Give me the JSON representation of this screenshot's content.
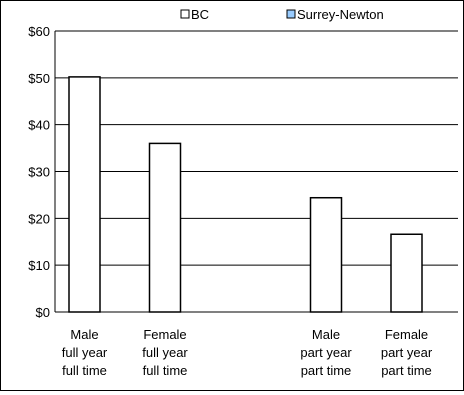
{
  "chart_data": {
    "type": "bar",
    "categories": [
      [
        "Male",
        "full year",
        "full time"
      ],
      [
        "Female",
        "full year",
        "full time"
      ],
      [
        "Male",
        "part year",
        "part time"
      ],
      [
        "Female",
        "part year",
        "part time"
      ]
    ],
    "category_positions": [
      0,
      1,
      3,
      4
    ],
    "series": [
      {
        "name": "BC",
        "values": [
          50.2,
          36.0,
          24.4,
          16.6
        ],
        "color": "#ffffff"
      },
      {
        "name": "Surrey-Newton",
        "values": [
          null,
          null,
          null,
          null
        ],
        "color": "#99ccff"
      }
    ],
    "yticks": [
      "$0",
      "$10",
      "$20",
      "$30",
      "$40",
      "$50",
      "$60"
    ],
    "ylim": [
      0,
      60
    ],
    "grid": true,
    "legend_position": "top-center"
  }
}
